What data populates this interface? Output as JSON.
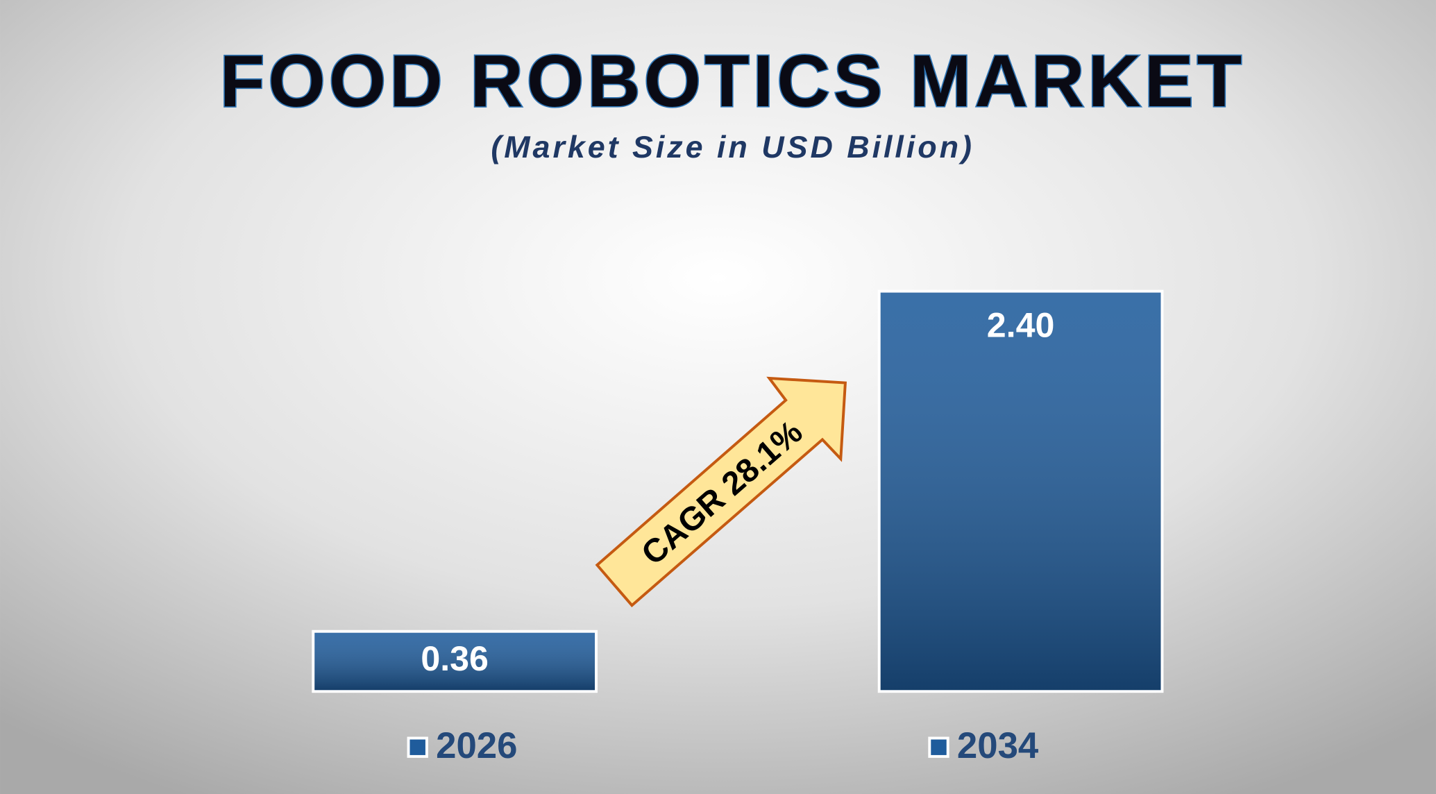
{
  "chart_data": {
    "type": "bar",
    "title": "FOOD ROBOTICS MARKET",
    "subtitle": "(Market Size in USD Billion)",
    "categories": [
      "2026",
      "2034"
    ],
    "values": [
      0.36,
      2.4
    ],
    "value_labels": [
      "0.36",
      "2.40"
    ],
    "color": "#1f5c9c",
    "annotation": "CAGR 28.1%"
  }
}
